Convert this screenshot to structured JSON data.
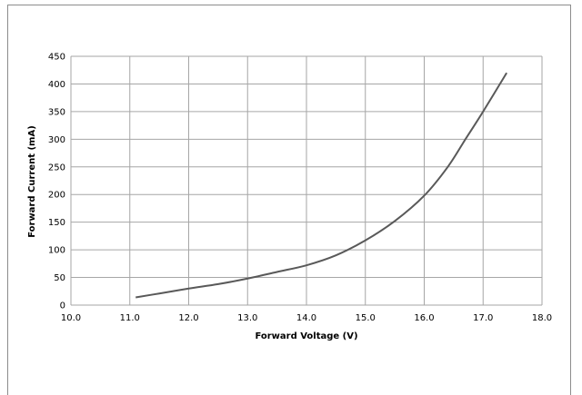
{
  "chart_data": {
    "type": "line",
    "title": "",
    "xlabel": "Forward Voltage (V)",
    "ylabel": "Forward Current (mA)",
    "xlim": [
      10.0,
      18.0
    ],
    "ylim": [
      0,
      450
    ],
    "x_ticks": [
      "10.0",
      "11.0",
      "12.0",
      "13.0",
      "14.0",
      "15.0",
      "16.0",
      "17.0",
      "18.0"
    ],
    "y_ticks": [
      "0",
      "50",
      "100",
      "150",
      "200",
      "250",
      "300",
      "350",
      "400",
      "450"
    ],
    "grid": true,
    "colors": {
      "line": "#595959",
      "grid": "#a6a6a6",
      "frame": "#8c8c8c"
    },
    "series": [
      {
        "x": [
          11.1,
          11.5,
          12.0,
          12.5,
          13.0,
          13.5,
          14.0,
          14.5,
          15.0,
          15.5,
          16.0,
          16.4,
          16.7,
          17.0,
          17.4
        ],
        "y": [
          14,
          21,
          30,
          38,
          48,
          60,
          72,
          90,
          117,
          152,
          198,
          250,
          300,
          350,
          420
        ]
      }
    ]
  }
}
